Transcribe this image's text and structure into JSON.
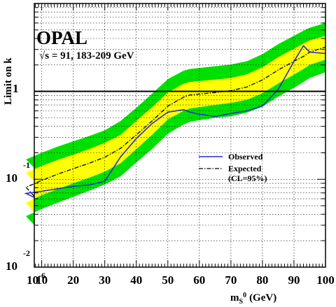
{
  "chart_data": {
    "type": "line",
    "experiment": "OPAL",
    "energy_label": "√s = 91, 183-209 GeV",
    "xlabel": "m",
    "xlabel_sub": "S",
    "xlabel_sup": "0",
    "xlabel_unit": "(GeV)",
    "ylabel": "Limit on k",
    "xlim": [
      1e-06,
      100
    ],
    "ylim": [
      0.01,
      10
    ],
    "yscale": "log",
    "grid": true,
    "x_ticks": [
      {
        "value": 1e-06,
        "base": "10",
        "exp": "-6"
      },
      {
        "value": 10,
        "label": "10"
      },
      {
        "value": 20,
        "label": "20"
      },
      {
        "value": 30,
        "label": "30"
      },
      {
        "value": 40,
        "label": "40"
      },
      {
        "value": 50,
        "label": "50"
      },
      {
        "value": 60,
        "label": "60"
      },
      {
        "value": 70,
        "label": "70"
      },
      {
        "value": 80,
        "label": "80"
      },
      {
        "value": 90,
        "label": "90"
      },
      {
        "value": 100,
        "label": "100"
      }
    ],
    "y_ticks": [
      {
        "value": 1,
        "base": "1",
        "exp": ""
      },
      {
        "value": 0.1,
        "base": "10",
        "exp": "-1"
      },
      {
        "value": 0.01,
        "base": "10",
        "exp": "-2"
      }
    ],
    "reference_line": 1,
    "legend": {
      "position": "right",
      "observed": "Observed",
      "expected": "Expected",
      "cl": "(CL=95%)"
    },
    "colors": {
      "observed": "#2a2ad6",
      "expected": "#000000",
      "band_1sigma": "#ffff00",
      "band_2sigma": "#00e000"
    },
    "x": [
      1e-06,
      5,
      10,
      15,
      20,
      25,
      30,
      35,
      40,
      45,
      50,
      55,
      57,
      60,
      65,
      70,
      75,
      80,
      85,
      90,
      93,
      95,
      100
    ],
    "expected": [
      0.064,
      0.081,
      0.097,
      0.114,
      0.132,
      0.152,
      0.178,
      0.225,
      0.32,
      0.46,
      0.68,
      0.86,
      0.91,
      0.93,
      0.97,
      1.02,
      1.12,
      1.35,
      1.75,
      2.2,
      2.5,
      2.8,
      3.2
    ],
    "observed": [
      0.062,
      0.069,
      0.073,
      0.078,
      0.083,
      0.086,
      0.095,
      0.18,
      0.29,
      0.43,
      0.58,
      0.62,
      0.58,
      0.55,
      0.52,
      0.56,
      0.6,
      0.68,
      1.05,
      2.2,
      3.3,
      2.8,
      2.7
    ],
    "band_1sigma_low": [
      0.042,
      0.054,
      0.066,
      0.077,
      0.09,
      0.104,
      0.122,
      0.152,
      0.22,
      0.32,
      0.48,
      0.6,
      0.64,
      0.66,
      0.7,
      0.74,
      0.8,
      0.95,
      1.23,
      1.55,
      1.8,
      2.0,
      2.3
    ],
    "band_1sigma_high": [
      0.095,
      0.118,
      0.142,
      0.166,
      0.19,
      0.22,
      0.26,
      0.32,
      0.46,
      0.66,
      0.97,
      1.22,
      1.28,
      1.31,
      1.36,
      1.42,
      1.56,
      1.88,
      2.45,
      3.05,
      3.5,
      3.8,
      4.3
    ],
    "band_2sigma_low": [
      0.03,
      0.038,
      0.046,
      0.054,
      0.063,
      0.074,
      0.087,
      0.108,
      0.155,
      0.22,
      0.33,
      0.42,
      0.45,
      0.47,
      0.5,
      0.52,
      0.57,
      0.67,
      0.87,
      1.1,
      1.28,
      1.42,
      1.65
    ],
    "band_2sigma_high": [
      0.135,
      0.168,
      0.2,
      0.235,
      0.27,
      0.31,
      0.36,
      0.46,
      0.65,
      0.94,
      1.38,
      1.72,
      1.8,
      1.85,
      1.93,
      2.02,
      2.2,
      2.65,
      3.45,
      4.3,
      4.9,
      5.3,
      6.0
    ]
  }
}
